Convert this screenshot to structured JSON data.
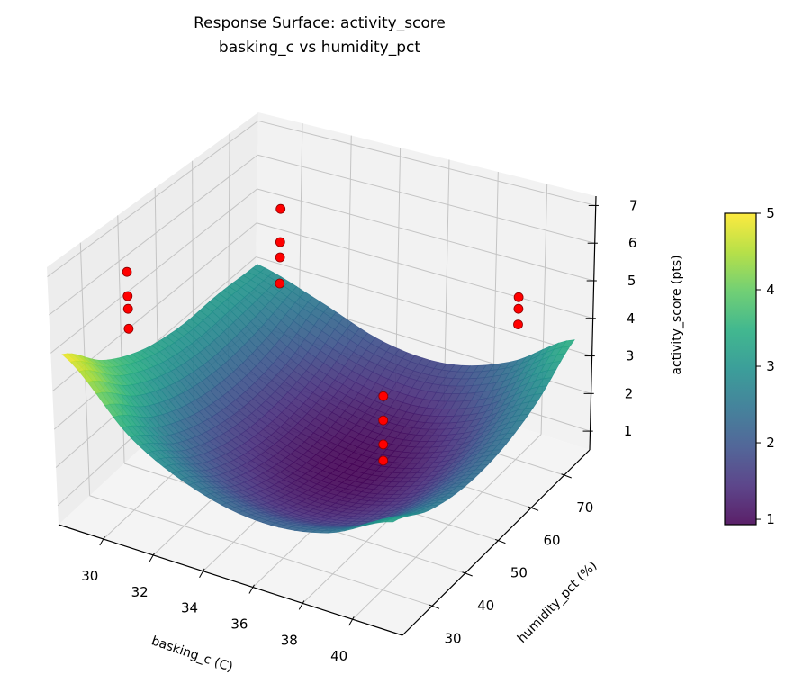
{
  "chart_data": {
    "type": "surface3d",
    "title": "Response Surface: activity_score",
    "subtitle": "basking_c vs humidity_pct",
    "xlabel": "basking_c (C)",
    "ylabel": "humidity_pct (%)",
    "zlabel": "activity_score (pts)",
    "xlim": [
      28.2,
      42.0
    ],
    "ylim": [
      21.0,
      77.7
    ],
    "zlim": [
      0.5,
      7.25
    ],
    "xticks": [
      "30",
      "32",
      "34",
      "36",
      "38",
      "40"
    ],
    "yticks": [
      "30",
      "40",
      "50",
      "60",
      "70"
    ],
    "zticks": [
      "1",
      "2",
      "3",
      "4",
      "5",
      "6",
      "7"
    ],
    "grid": true,
    "colormap": "viridis",
    "colorbar": {
      "range": [
        0.93,
        5.0
      ],
      "ticks": [
        "1",
        "2",
        "3",
        "4",
        "5"
      ],
      "placement": "right"
    },
    "surface": {
      "x": [
        28.5,
        31.1,
        33.7,
        36.3,
        38.9,
        41.5
      ],
      "y": [
        22,
        33,
        44,
        54,
        65,
        76
      ],
      "z": [
        [
          4.95,
          3.95,
          3.35,
          3.1,
          3.1,
          3.0
        ],
        [
          3.31,
          2.49,
          2.0,
          1.83,
          1.98,
          2.46
        ],
        [
          2.46,
          1.69,
          1.25,
          1.13,
          1.34,
          1.87
        ],
        [
          2.16,
          1.45,
          1.06,
          0.95,
          1.2,
          1.8
        ],
        [
          2.43,
          1.77,
          1.44,
          1.43,
          1.74,
          2.38
        ],
        [
          3.25,
          2.65,
          2.37,
          2.41,
          2.78,
          3.48
        ]
      ]
    },
    "scatter": {
      "color": "#ff0000",
      "points": [
        {
          "x": 30,
          "y": 30,
          "z": 6.83
        },
        {
          "x": 30,
          "y": 30,
          "z": 6.19
        },
        {
          "x": 30,
          "y": 30,
          "z": 5.85
        },
        {
          "x": 30,
          "y": 30,
          "z": 5.32
        },
        {
          "x": 30,
          "y": 72,
          "z": 5.25
        },
        {
          "x": 30,
          "y": 72,
          "z": 4.3
        },
        {
          "x": 30,
          "y": 72,
          "z": 3.86
        },
        {
          "x": 30,
          "y": 72,
          "z": 3.11
        },
        {
          "x": 40,
          "y": 70,
          "z": 4.85
        },
        {
          "x": 40,
          "y": 70,
          "z": 4.54
        },
        {
          "x": 40,
          "y": 70,
          "z": 4.12
        },
        {
          "x": 38,
          "y": 45,
          "z": 3.92
        },
        {
          "x": 38,
          "y": 45,
          "z": 3.28
        },
        {
          "x": 38,
          "y": 45,
          "z": 2.64
        },
        {
          "x": 38,
          "y": 45,
          "z": 2.21
        }
      ]
    }
  }
}
